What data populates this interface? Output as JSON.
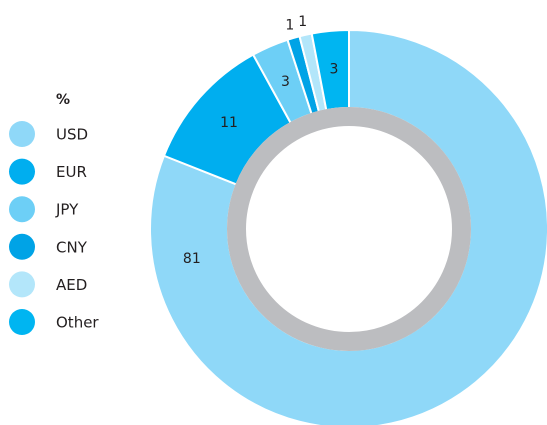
{
  "chart_data": {
    "type": "donut",
    "legend_title": "%",
    "categories": [
      "USD",
      "EUR",
      "JPY",
      "CNY",
      "AED",
      "Other"
    ],
    "values": [
      81,
      11,
      3,
      1,
      1,
      3
    ],
    "colors": [
      "#8fd8f8",
      "#00aeef",
      "#6dcff6",
      "#00a3e6",
      "#b3e6fa",
      "#00b5f1"
    ],
    "legend": "left"
  }
}
